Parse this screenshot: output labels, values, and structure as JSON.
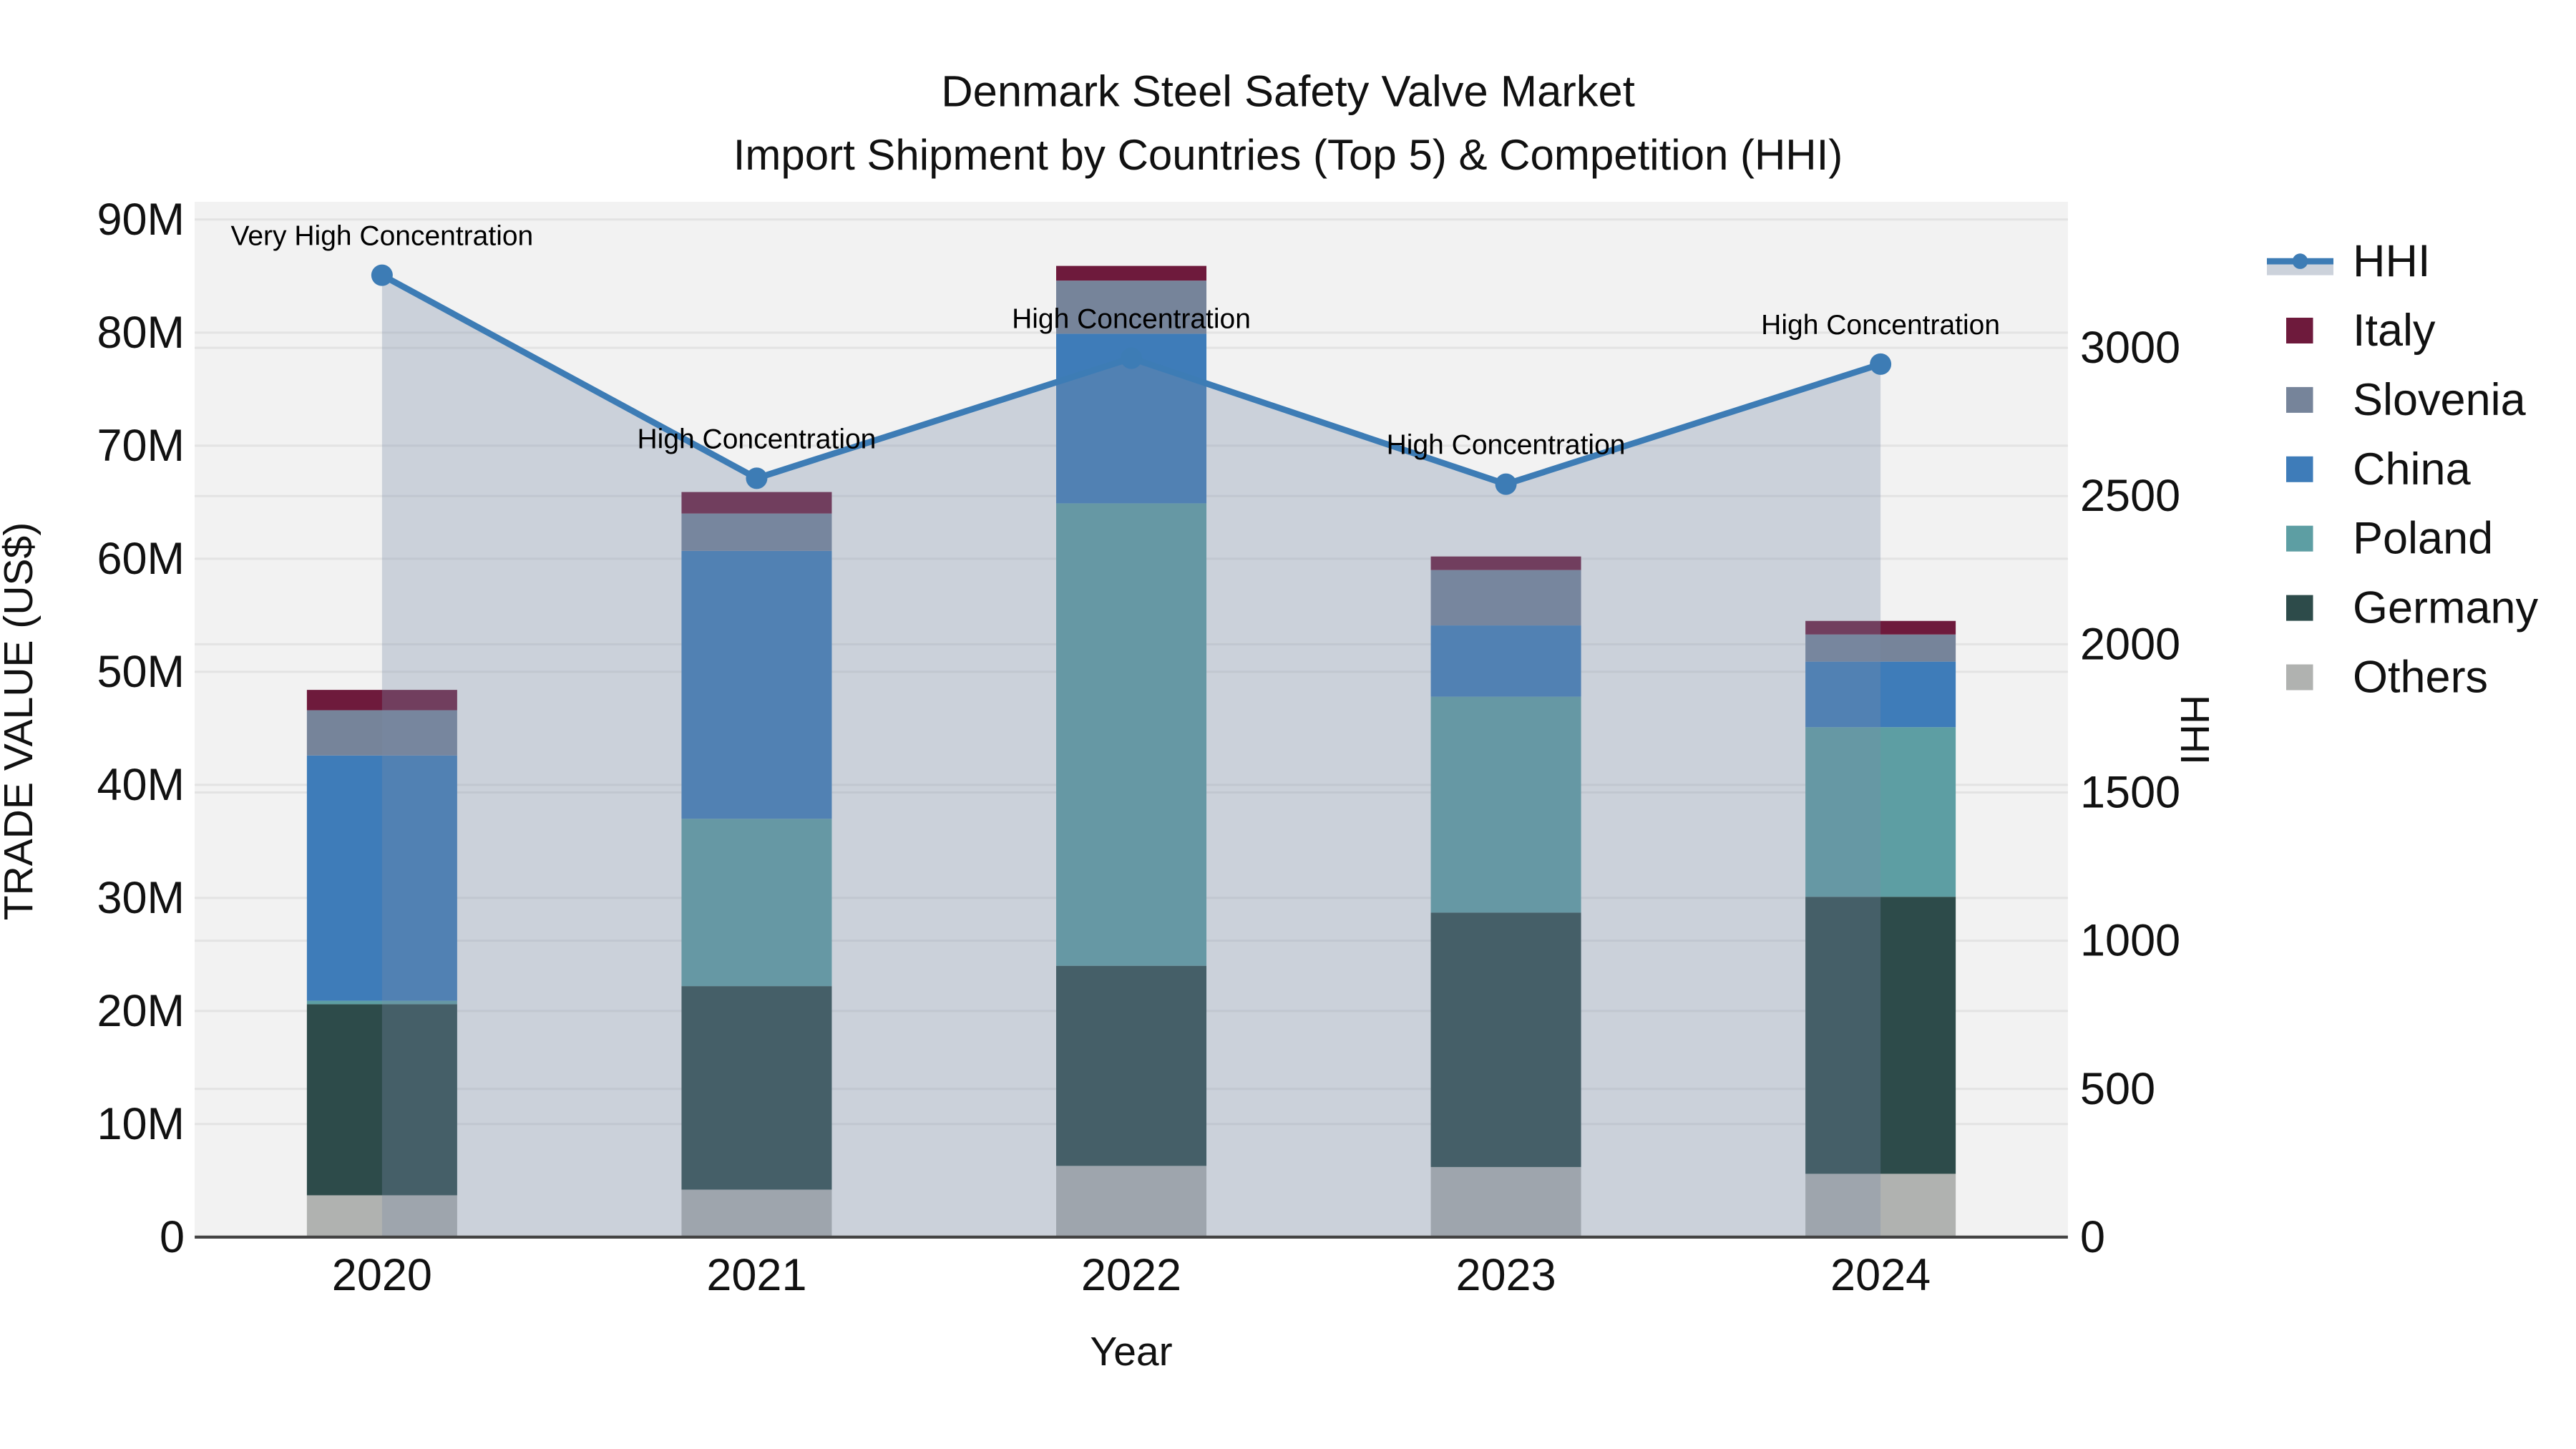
{
  "figure": {
    "background": "#ffffff",
    "plot_background": "#f2f2f2",
    "gridline_color": "#e3e3e3",
    "axis_line_color": "#444444"
  },
  "chart_data": {
    "type": "stacked-bar+line",
    "title": "Denmark Steel Safety Valve Market",
    "subtitle": "Import Shipment by Countries (Top 5) & Competition (HHI)",
    "xlabel": "Year",
    "ylabel": "TRADE VALUE (US$)",
    "y2label": "HHI",
    "categories": [
      "2020",
      "2021",
      "2022",
      "2023",
      "2024"
    ],
    "value_unit": "M US$ (trade value, left axis)",
    "series": [
      {
        "name": "Others",
        "color": "#b0b2b0",
        "values": [
          3.7,
          4.2,
          6.3,
          6.2,
          5.6
        ]
      },
      {
        "name": "Germany",
        "color": "#2d4b4a",
        "values": [
          16.9,
          18.0,
          17.7,
          22.5,
          24.5
        ]
      },
      {
        "name": "Poland",
        "color": "#5d9ea3",
        "values": [
          0.3,
          14.8,
          40.9,
          19.1,
          15.0
        ]
      },
      {
        "name": "China",
        "color": "#3e7cb9",
        "values": [
          21.7,
          23.7,
          15.0,
          6.3,
          5.8
        ]
      },
      {
        "name": "Slovenia",
        "color": "#76849a",
        "values": [
          4.0,
          3.3,
          4.7,
          4.9,
          2.4
        ]
      },
      {
        "name": "Italy",
        "color": "#6e1a3c",
        "values": [
          1.8,
          1.9,
          1.3,
          1.2,
          1.2
        ]
      }
    ],
    "line": {
      "name": "HHI",
      "color": "#3d7cb5",
      "area_fill_color": "rgba(122,141,169,0.32)",
      "legend_band_color": "#ccd2db",
      "values": [
        3245,
        2560,
        2965,
        2540,
        2945
      ],
      "annotations": [
        "Very High Concentration",
        "High Concentration",
        "High Concentration",
        "High Concentration",
        "High Concentration"
      ]
    },
    "y_axis": {
      "min": 0,
      "max": 90,
      "step": 10,
      "tick_labels": [
        "0",
        "10M",
        "20M",
        "30M",
        "40M",
        "50M",
        "60M",
        "70M",
        "80M",
        "90M"
      ]
    },
    "y2_axis": {
      "min": 0,
      "max": 3000,
      "step": 500,
      "tick_labels": [
        "0",
        "500",
        "1000",
        "1500",
        "2000",
        "2500",
        "3000"
      ]
    },
    "legend": {
      "order": [
        "HHI",
        "Italy",
        "Slovenia",
        "China",
        "Poland",
        "Germany",
        "Others"
      ],
      "position": "right"
    },
    "grid": "both-y-axes"
  }
}
